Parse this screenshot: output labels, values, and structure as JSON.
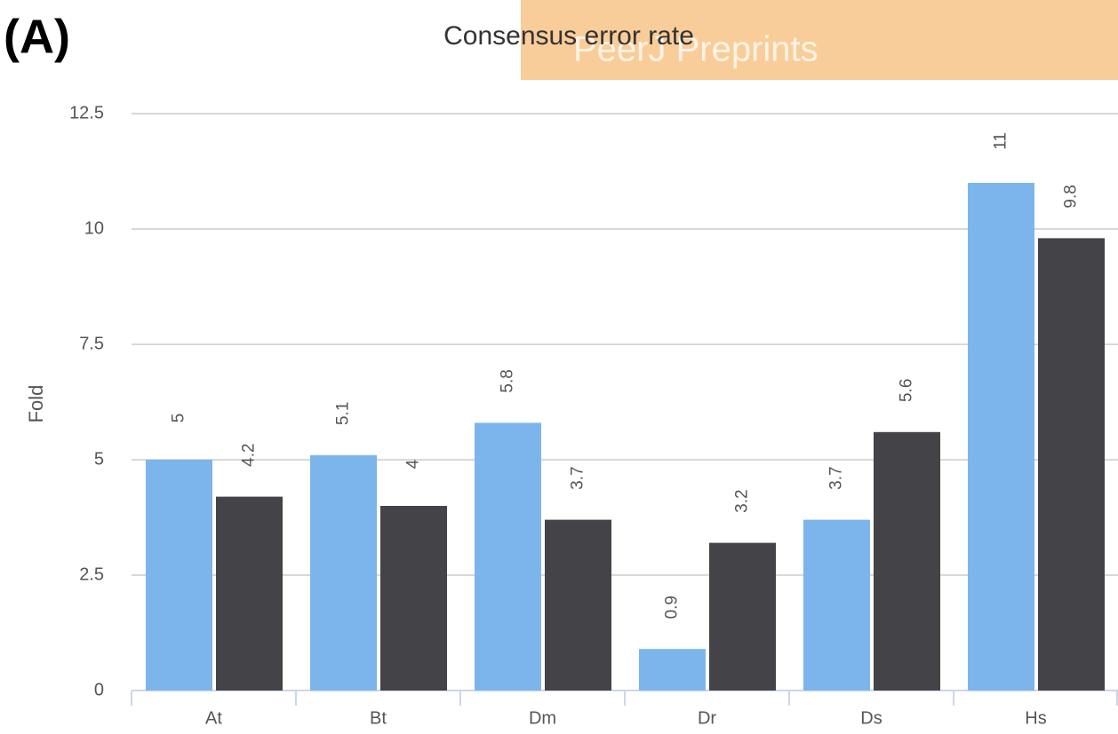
{
  "panel_label": "(A)",
  "watermark": "PeerJ Preprints",
  "chart_data": {
    "type": "bar",
    "title": "Consensus error rate",
    "y_label": "Fold",
    "categories": [
      "At",
      "Bt",
      "Dm",
      "Dr",
      "Ds",
      "Hs"
    ],
    "series": [
      {
        "color": "#7cb5ec",
        "values": [
          5,
          5.1,
          5.8,
          0.9,
          3.7,
          11
        ]
      },
      {
        "color": "#434348",
        "values": [
          4.2,
          4,
          3.7,
          3.2,
          5.6,
          9.8
        ]
      }
    ],
    "ylim": [
      0,
      12.5
    ],
    "yticks": [
      0,
      2.5,
      5,
      7.5,
      10,
      12.5
    ],
    "grid": true
  }
}
